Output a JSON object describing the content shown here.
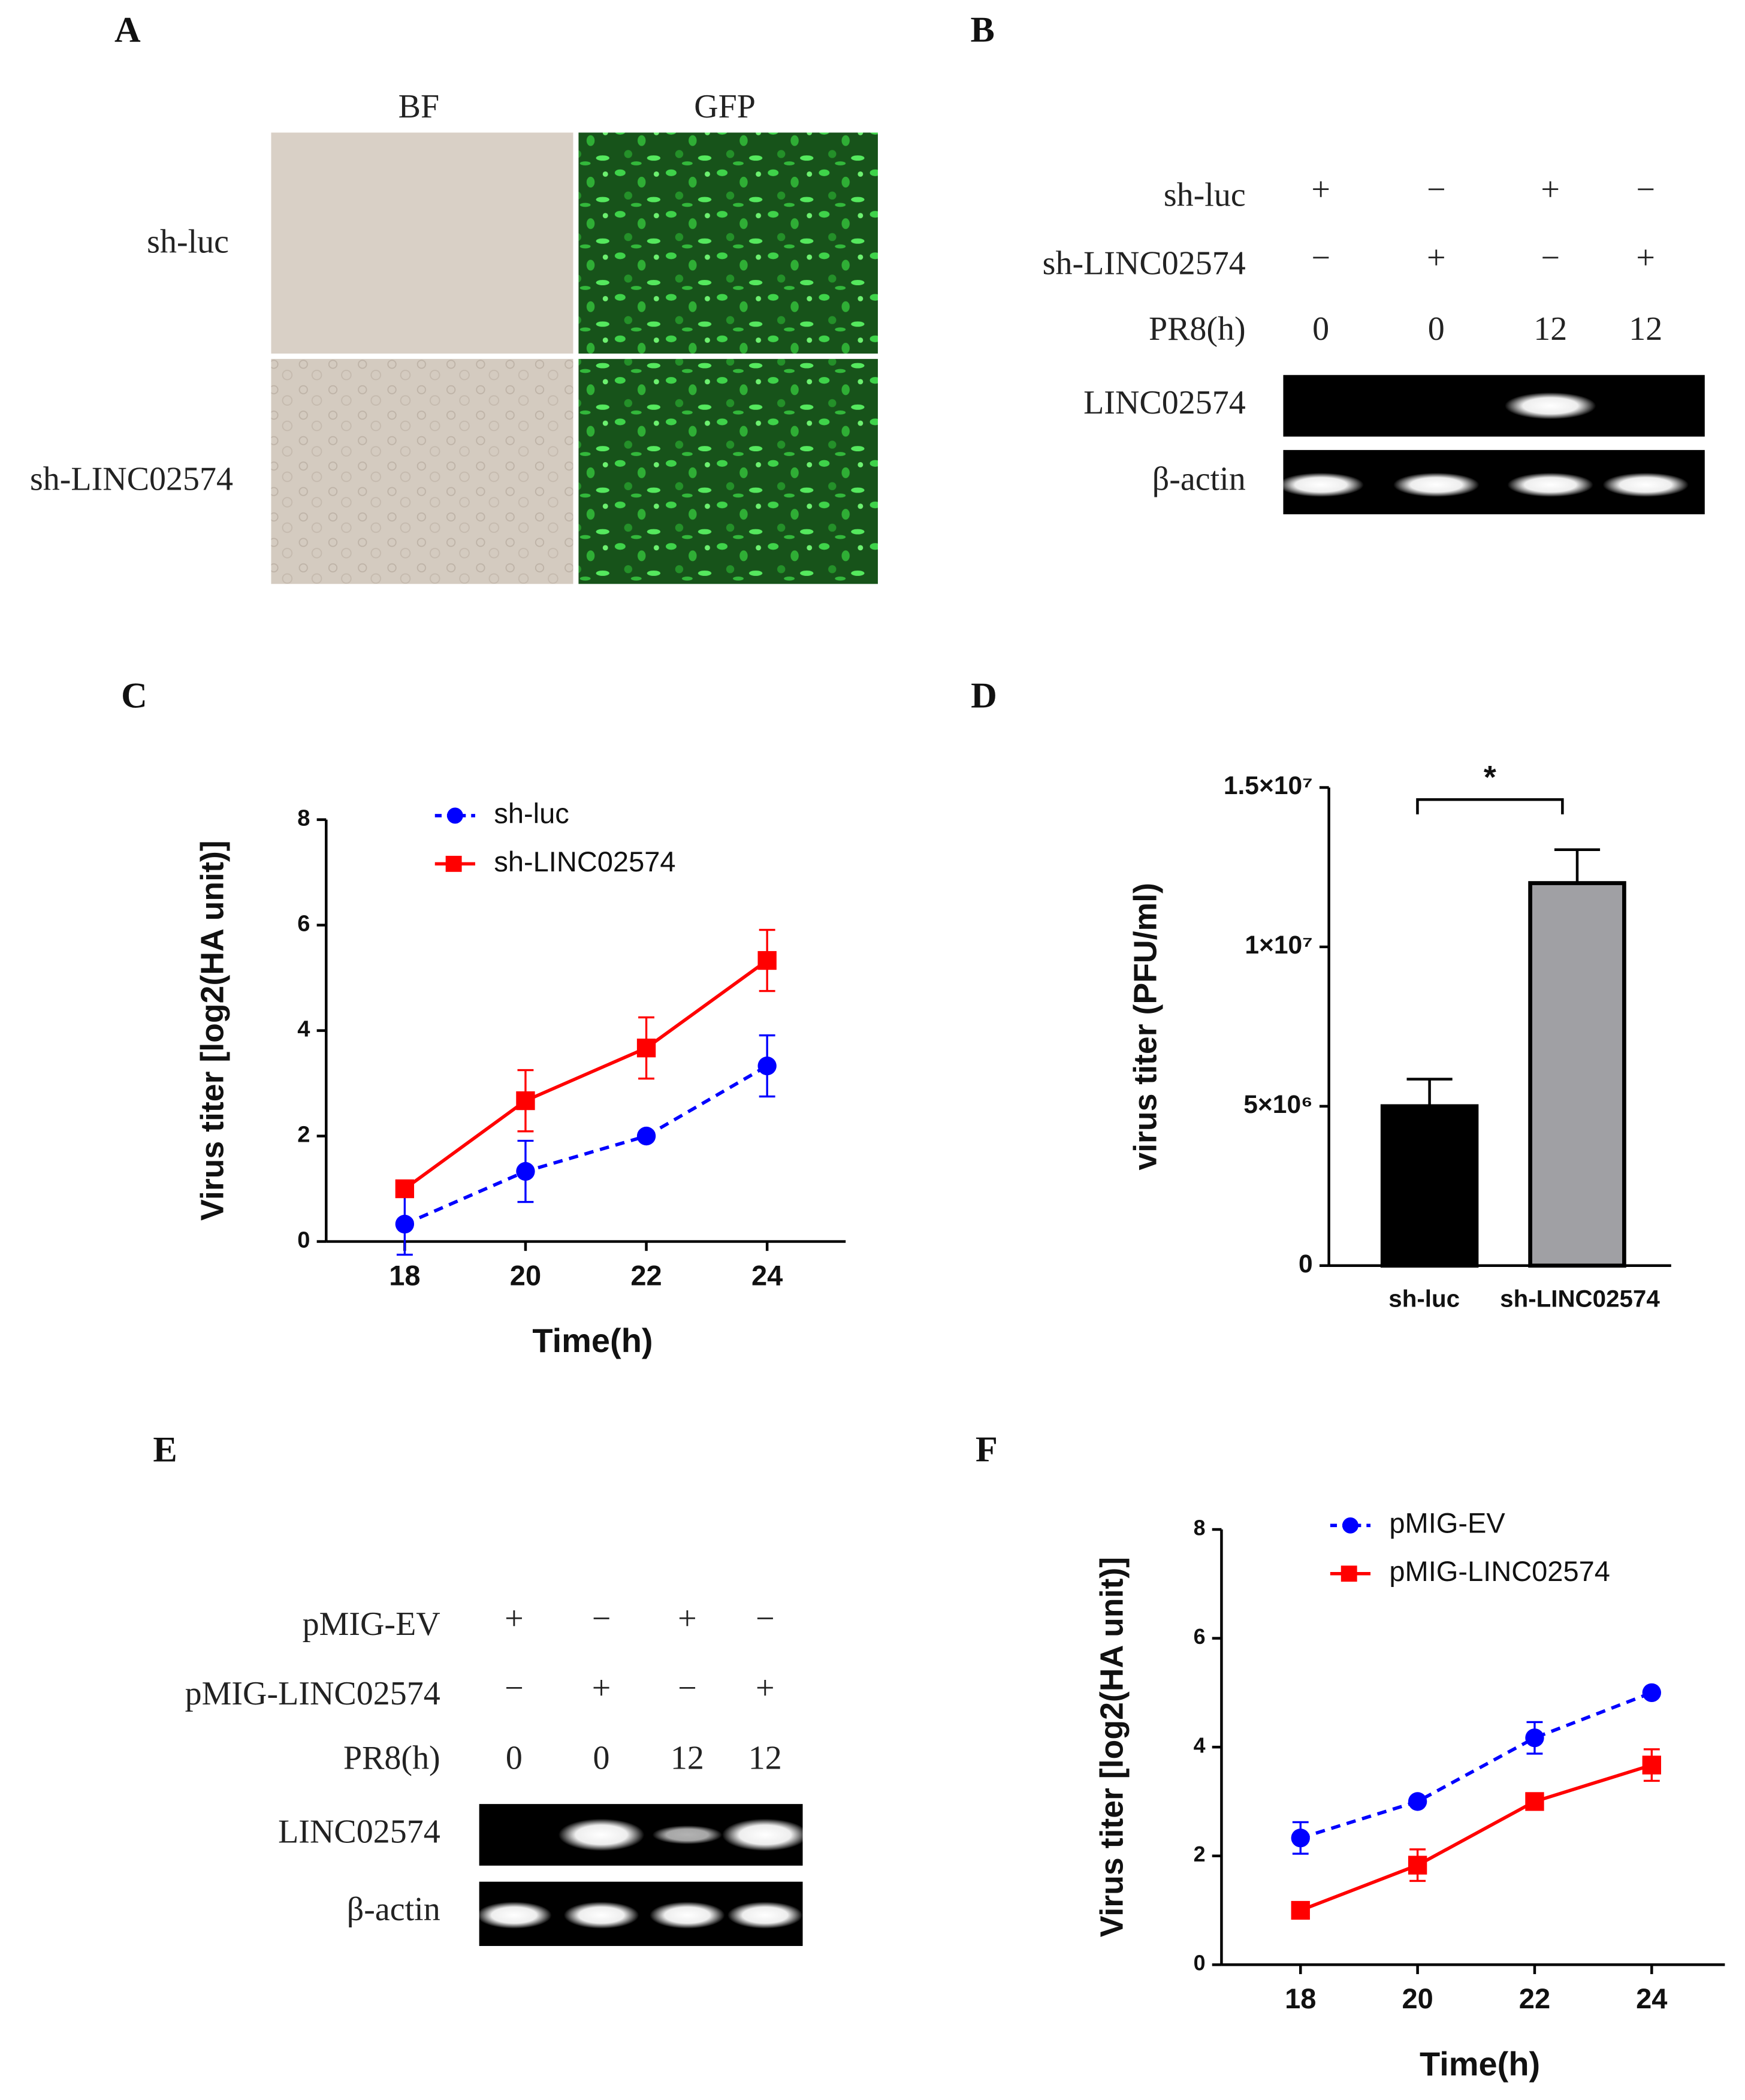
{
  "panel_labels": [
    "A",
    "B",
    "C",
    "D",
    "E",
    "F"
  ],
  "panel_a": {
    "columns": [
      "BF",
      "GFP"
    ],
    "rows": [
      "sh-luc",
      "sh-LINC02574"
    ]
  },
  "panel_b": {
    "conditions": [
      {
        "label": "sh-luc",
        "cells": [
          "+",
          "−",
          "+",
          "−"
        ]
      },
      {
        "label": "sh-LINC02574",
        "cells": [
          "−",
          "+",
          "−",
          "+"
        ]
      },
      {
        "label": "PR8(h)",
        "cells": [
          0,
          0,
          12,
          12
        ]
      }
    ],
    "gels": [
      "LINC02574",
      "β-actin"
    ]
  },
  "panel_e": {
    "conditions": [
      {
        "label": "pMIG-EV",
        "cells": [
          "+",
          "−",
          "+",
          "−"
        ]
      },
      {
        "label": "pMIG-LINC02574",
        "cells": [
          "−",
          "+",
          "−",
          "+"
        ]
      },
      {
        "label": "PR8(h)",
        "cells": [
          0,
          0,
          12,
          12
        ]
      }
    ],
    "gels": [
      "LINC02574",
      "β-actin"
    ]
  },
  "chart_data": [
    {
      "type": "line",
      "y_label": "Virus titer [log2(HA unit)]",
      "x_label": "Time(h)",
      "x": [
        18,
        20,
        22,
        24
      ],
      "xlim": [
        16.7,
        25.3
      ],
      "xticks": [
        18,
        20,
        22,
        24
      ],
      "ylim": [
        0,
        8
      ],
      "yticks": [
        0,
        2,
        4,
        6,
        8
      ],
      "legend": "upper left",
      "series": [
        {
          "name": "sh-luc",
          "color": "#0000ff",
          "marker": "circle",
          "linestyle": "dashed",
          "values": [
            0.33,
            1.33,
            2,
            3.33
          ],
          "errors": [
            0.58,
            0.58,
            0,
            0.58
          ]
        },
        {
          "name": "sh-LINC02574",
          "color": "#ff0000",
          "marker": "square",
          "linestyle": "solid",
          "values": [
            1,
            2.67,
            3.67,
            5.33
          ],
          "errors": [
            0,
            0.58,
            0.58,
            0.58
          ]
        }
      ]
    },
    {
      "type": "bar",
      "y_label": "virus titer (PFU/ml)",
      "categories": [
        "sh-luc",
        "sh-LINC02574"
      ],
      "values": [
        5000000,
        12000000
      ],
      "errors": [
        850000,
        1050000
      ],
      "colors": [
        "#000000",
        "#a0a0a4"
      ],
      "ylim": [
        0,
        15000000
      ],
      "yticks": [
        0,
        {
          "value": 5000000,
          "label": "5×10⁶"
        },
        {
          "value": 10000000,
          "label": "1×10⁷"
        },
        {
          "value": 15000000,
          "label": "1.5×10⁷"
        }
      ],
      "significance": "*"
    },
    {
      "type": "line",
      "y_label": "Virus titer [log2(HA unit)]",
      "x_label": "Time(h)",
      "x": [
        18,
        20,
        22,
        24
      ],
      "xlim": [
        16.65,
        25.25
      ],
      "xticks": [
        18,
        20,
        22,
        24
      ],
      "ylim": [
        0,
        8
      ],
      "yticks": [
        0,
        2,
        4,
        6,
        8
      ],
      "legend": "upper left",
      "series": [
        {
          "name": "pMIG-EV",
          "color": "#0000ff",
          "marker": "circle",
          "linestyle": "dashed",
          "values": [
            2.33,
            3,
            4.17,
            5
          ],
          "errors": [
            0.29,
            0,
            0.29,
            0
          ]
        },
        {
          "name": "pMIG-LINC02574",
          "color": "#ff0000",
          "marker": "square",
          "linestyle": "solid",
          "values": [
            1,
            1.83,
            3,
            3.67
          ],
          "errors": [
            0,
            0.29,
            0,
            0.29
          ]
        }
      ]
    }
  ]
}
